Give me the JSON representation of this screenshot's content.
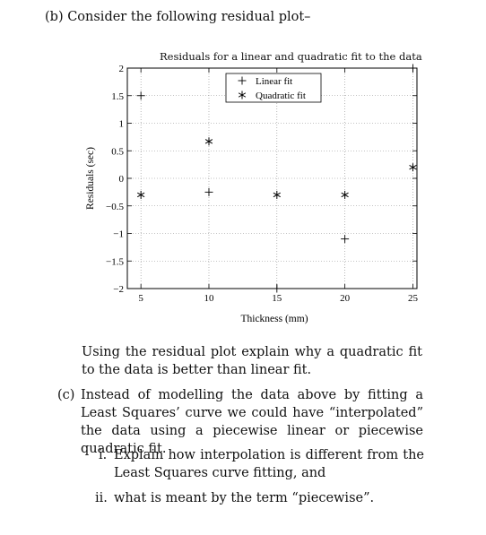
{
  "question_b": "(b) Consider the following residual plot–",
  "chart_data": {
    "type": "scatter",
    "title": "Residuals for a linear and quadratic fit to the data",
    "xlabel": "Thickness (mm)",
    "ylabel": "Residuals (sec)",
    "xlim": [
      4,
      25.3
    ],
    "ylim": [
      -2,
      2
    ],
    "grid": true,
    "legend_position": "top-center",
    "x_ticks": [
      5,
      10,
      15,
      20,
      25
    ],
    "y_ticks": [
      {
        "value": 2,
        "label": "2"
      },
      {
        "value": 1.5,
        "label": "1.5"
      },
      {
        "value": 1,
        "label": "1"
      },
      {
        "value": 0.5,
        "label": "0.5"
      },
      {
        "value": 0,
        "label": "0"
      },
      {
        "value": -0.5,
        "label": "−0.5"
      },
      {
        "value": -1,
        "label": "−1"
      },
      {
        "value": -1.5,
        "label": "−1.5"
      },
      {
        "value": -2,
        "label": "−2"
      }
    ],
    "series": [
      {
        "name": "Linear fit",
        "marker": "+",
        "x": [
          5,
          10,
          15,
          20,
          25
        ],
        "y": [
          1.5,
          -0.25,
          -2.0,
          -1.1,
          2.0
        ]
      },
      {
        "name": "Quadratic fit",
        "marker": "*",
        "x": [
          5,
          10,
          15,
          20,
          25
        ],
        "y": [
          -0.3,
          0.67,
          -0.3,
          -0.3,
          0.2
        ]
      }
    ]
  },
  "question_b_text": "Using the residual plot explain why a quadratic fit to the data is better than linear fit.",
  "question_c_label": "(c)",
  "question_c_text": "Instead of modelling the data above by fitting a Least Squares’ curve we could have “interpolated” the data using a piecewise linear or piecewise quadratic fit.",
  "sub_i_label": "i.",
  "sub_i_text": "Explain how interpolation is different from the Least Squares curve fitting, and",
  "sub_ii_label": "ii.",
  "sub_ii_text": "what is meant by the term “piecewise”."
}
